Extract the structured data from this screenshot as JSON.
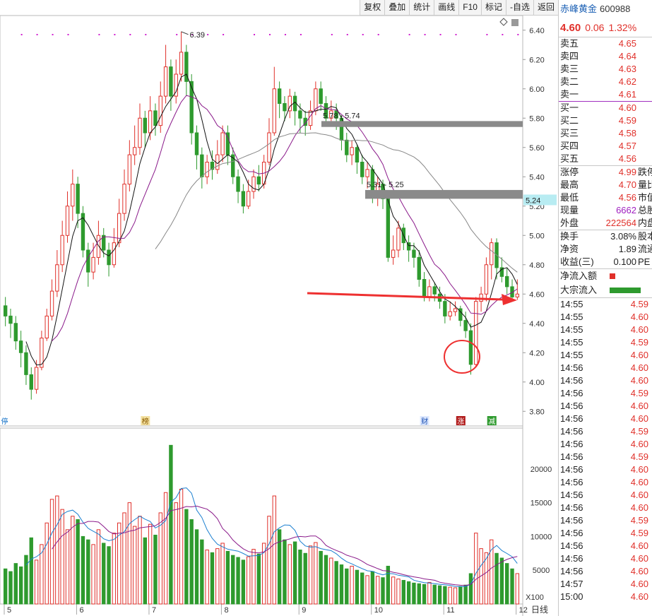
{
  "toolbar": {
    "buttons": [
      "复权",
      "叠加",
      "统计",
      "画线",
      "F10",
      "标记",
      "-自选",
      "返回"
    ]
  },
  "stock": {
    "name": "赤峰黄金",
    "code": "600988",
    "price": "4.60",
    "change": "0.06",
    "pct": "1.32%"
  },
  "order_book": {
    "sells": [
      {
        "label": "卖五",
        "price": "4.65"
      },
      {
        "label": "卖四",
        "price": "4.64"
      },
      {
        "label": "卖三",
        "price": "4.63"
      },
      {
        "label": "卖二",
        "price": "4.62"
      },
      {
        "label": "卖一",
        "price": "4.61"
      }
    ],
    "buys": [
      {
        "label": "买一",
        "price": "4.60"
      },
      {
        "label": "买二",
        "price": "4.59"
      },
      {
        "label": "买三",
        "price": "4.58"
      },
      {
        "label": "买四",
        "price": "4.57"
      },
      {
        "label": "买五",
        "price": "4.56"
      }
    ]
  },
  "stats": [
    {
      "label": "涨停",
      "value": "4.99",
      "extra": "跌停",
      "color": "#e0302a"
    },
    {
      "label": "最高",
      "value": "4.70",
      "extra": "量比",
      "color": "#e0302a"
    },
    {
      "label": "最低",
      "value": "4.56",
      "extra": "市值",
      "color": "#e0302a"
    },
    {
      "label": "现量",
      "value": "6662",
      "extra": "总股",
      "color": "#a020c0"
    },
    {
      "label": "外盘",
      "value": "222564",
      "extra": "内盘",
      "color": "#e0302a"
    }
  ],
  "stats2": [
    {
      "label": "换手",
      "value": "3.08%",
      "extra": "股本",
      "color": "#222"
    },
    {
      "label": "净资",
      "value": "1.89",
      "extra": "流通",
      "color": "#222"
    },
    {
      "label": "收益(三)",
      "value": "0.100",
      "extra": "PE",
      "color": "#222"
    }
  ],
  "flows": [
    {
      "label": "净流入额",
      "color": "#e0302a"
    },
    {
      "label": "大宗流入",
      "color": "#2e9a2e"
    }
  ],
  "ticks": [
    {
      "t": "14:55",
      "p": "4.59"
    },
    {
      "t": "14:55",
      "p": "4.60"
    },
    {
      "t": "14:55",
      "p": "4.60"
    },
    {
      "t": "14:55",
      "p": "4.59"
    },
    {
      "t": "14:55",
      "p": "4.60"
    },
    {
      "t": "14:56",
      "p": "4.60"
    },
    {
      "t": "14:56",
      "p": "4.60"
    },
    {
      "t": "14:56",
      "p": "4.59"
    },
    {
      "t": "14:56",
      "p": "4.60"
    },
    {
      "t": "14:56",
      "p": "4.60"
    },
    {
      "t": "14:56",
      "p": "4.59"
    },
    {
      "t": "14:56",
      "p": "4.60"
    },
    {
      "t": "14:56",
      "p": "4.59"
    },
    {
      "t": "14:56",
      "p": "4.60"
    },
    {
      "t": "14:56",
      "p": "4.60"
    },
    {
      "t": "14:56",
      "p": "4.60"
    },
    {
      "t": "14:56",
      "p": "4.60"
    },
    {
      "t": "14:56",
      "p": "4.59"
    },
    {
      "t": "14:56",
      "p": "4.59"
    },
    {
      "t": "14:56",
      "p": "4.60"
    },
    {
      "t": "14:56",
      "p": "4.60"
    },
    {
      "t": "14:56",
      "p": "4.60"
    },
    {
      "t": "14:57",
      "p": "4.60"
    },
    {
      "t": "15:00",
      "p": "4.60"
    }
  ],
  "chart_data": {
    "type": "candlestick",
    "price_axis_ticks": [
      "6.40",
      "6.20",
      "6.00",
      "5.80",
      "5.60",
      "5.40",
      "5.20",
      "5.00",
      "4.80",
      "4.60",
      "4.40",
      "4.20",
      "4.00",
      "3.80"
    ],
    "price_range": [
      3.7,
      6.5
    ],
    "volume_axis_ticks": [
      "20000",
      "15000",
      "10000",
      "5000"
    ],
    "volume_range": [
      0,
      25000
    ],
    "volume_unit": "X100",
    "period_label": "日线",
    "month_labels": [
      "5",
      "6",
      "7",
      "8",
      "9",
      "10",
      "11",
      "12"
    ],
    "annotations": {
      "high": "6.39",
      "zone1": "5.78 - 5.74",
      "zone2": "5.31 - 5.25",
      "zone2_tag": "5.24"
    },
    "event_markers": [
      "停",
      "榜",
      "财",
      "涨",
      "减"
    ],
    "candles": [
      [
        4.52,
        4.45,
        4.58,
        4.38
      ],
      [
        4.45,
        4.4,
        4.5,
        4.3
      ],
      [
        4.4,
        4.28,
        4.45,
        4.22
      ],
      [
        4.28,
        4.2,
        4.35,
        4.1
      ],
      [
        4.2,
        4.05,
        4.25,
        3.98
      ],
      [
        4.05,
        3.95,
        4.1,
        3.88
      ],
      [
        3.95,
        4.1,
        4.15,
        3.92
      ],
      [
        4.1,
        4.3,
        4.35,
        4.08
      ],
      [
        4.3,
        4.45,
        4.5,
        4.28
      ],
      [
        4.45,
        4.62,
        4.7,
        4.42
      ],
      [
        4.62,
        4.8,
        4.9,
        4.58
      ],
      [
        4.8,
        5.0,
        5.1,
        4.75
      ],
      [
        5.0,
        5.2,
        5.3,
        4.95
      ],
      [
        5.2,
        5.35,
        5.45,
        5.1
      ],
      [
        5.35,
        5.15,
        5.4,
        5.05
      ],
      [
        5.15,
        4.9,
        5.2,
        4.85
      ],
      [
        4.9,
        4.75,
        4.95,
        4.65
      ],
      [
        4.75,
        4.85,
        4.95,
        4.7
      ],
      [
        4.85,
        5.0,
        5.1,
        4.8
      ],
      [
        5.0,
        4.9,
        5.05,
        4.85
      ],
      [
        4.9,
        4.8,
        4.95,
        4.72
      ],
      [
        4.8,
        4.95,
        5.05,
        4.78
      ],
      [
        4.95,
        5.15,
        5.25,
        4.92
      ],
      [
        5.15,
        5.35,
        5.45,
        5.1
      ],
      [
        5.35,
        5.55,
        5.65,
        5.3
      ],
      [
        5.55,
        5.6,
        5.75,
        5.48
      ],
      [
        5.6,
        5.8,
        5.9,
        5.55
      ],
      [
        5.8,
        5.7,
        5.85,
        5.6
      ],
      [
        5.7,
        5.85,
        5.95,
        5.65
      ],
      [
        5.85,
        5.75,
        5.9,
        5.68
      ],
      [
        5.75,
        5.95,
        6.05,
        5.7
      ],
      [
        5.95,
        6.15,
        6.3,
        5.9
      ],
      [
        6.15,
        5.95,
        6.2,
        5.85
      ],
      [
        5.95,
        6.1,
        6.2,
        5.9
      ],
      [
        6.1,
        6.25,
        6.39,
        6.05
      ],
      [
        6.25,
        6.05,
        6.3,
        5.95
      ],
      [
        6.05,
        5.7,
        6.1,
        5.62
      ],
      [
        5.7,
        5.55,
        5.75,
        5.45
      ],
      [
        5.55,
        5.4,
        5.6,
        5.32
      ],
      [
        5.4,
        5.5,
        5.55,
        5.35
      ],
      [
        5.5,
        5.45,
        5.58,
        5.38
      ],
      [
        5.45,
        5.55,
        5.65,
        5.42
      ],
      [
        5.55,
        5.7,
        5.75,
        5.5
      ],
      [
        5.7,
        5.55,
        5.75,
        5.48
      ],
      [
        5.55,
        5.4,
        5.6,
        5.35
      ],
      [
        5.4,
        5.3,
        5.45,
        5.22
      ],
      [
        5.3,
        5.2,
        5.35,
        5.15
      ],
      [
        5.2,
        5.3,
        5.38,
        5.18
      ],
      [
        5.3,
        5.4,
        5.45,
        5.25
      ],
      [
        5.4,
        5.35,
        5.48,
        5.3
      ],
      [
        5.35,
        5.5,
        5.55,
        5.32
      ],
      [
        5.5,
        5.7,
        5.8,
        5.48
      ],
      [
        5.7,
        6.0,
        6.15,
        5.68
      ],
      [
        6.0,
        5.9,
        6.05,
        5.8
      ],
      [
        5.9,
        5.85,
        5.95,
        5.78
      ],
      [
        5.85,
        5.95,
        6.0,
        5.8
      ],
      [
        5.95,
        5.85,
        5.98,
        5.75
      ],
      [
        5.85,
        5.8,
        5.9,
        5.7
      ],
      [
        5.8,
        5.75,
        5.85,
        5.68
      ],
      [
        5.75,
        5.85,
        5.92,
        5.72
      ],
      [
        5.85,
        6.0,
        6.05,
        5.82
      ],
      [
        6.0,
        5.9,
        6.05,
        5.85
      ],
      [
        5.9,
        5.8,
        5.95,
        5.75
      ],
      [
        5.8,
        5.85,
        5.92,
        5.78
      ],
      [
        5.85,
        5.8,
        5.9,
        5.72
      ],
      [
        5.8,
        5.65,
        5.82,
        5.58
      ],
      [
        5.65,
        5.55,
        5.7,
        5.5
      ],
      [
        5.55,
        5.6,
        5.65,
        5.48
      ],
      [
        5.6,
        5.5,
        5.62,
        5.42
      ],
      [
        5.5,
        5.4,
        5.55,
        5.35
      ],
      [
        5.4,
        5.45,
        5.5,
        5.32
      ],
      [
        5.45,
        5.3,
        5.48,
        5.22
      ],
      [
        5.3,
        5.35,
        5.4,
        5.2
      ],
      [
        5.35,
        5.25,
        5.38,
        5.18
      ],
      [
        5.25,
        4.85,
        5.28,
        4.82
      ],
      [
        4.85,
        4.9,
        5.0,
        4.8
      ],
      [
        4.9,
        5.05,
        5.1,
        4.85
      ],
      [
        5.05,
        4.95,
        5.08,
        4.9
      ],
      [
        4.95,
        4.9,
        5.0,
        4.82
      ],
      [
        4.9,
        4.85,
        4.95,
        4.78
      ],
      [
        4.85,
        4.7,
        4.9,
        4.65
      ],
      [
        4.7,
        4.58,
        4.75,
        4.55
      ],
      [
        4.58,
        4.65,
        4.7,
        4.55
      ],
      [
        4.65,
        4.6,
        4.68,
        4.55
      ],
      [
        4.6,
        4.55,
        4.65,
        4.5
      ],
      [
        4.55,
        4.45,
        4.6,
        4.4
      ],
      [
        4.45,
        4.48,
        4.55,
        4.42
      ],
      [
        4.48,
        4.5,
        4.55,
        4.45
      ],
      [
        4.5,
        4.42,
        4.52,
        4.38
      ],
      [
        4.42,
        4.35,
        4.48,
        4.3
      ],
      [
        4.35,
        4.12,
        4.4,
        4.05
      ],
      [
        4.12,
        4.55,
        4.58,
        4.1
      ],
      [
        4.55,
        4.6,
        4.65,
        4.48
      ],
      [
        4.6,
        4.8,
        4.85,
        4.55
      ],
      [
        4.8,
        4.95,
        4.98,
        4.7
      ],
      [
        4.95,
        4.78,
        4.98,
        4.7
      ],
      [
        4.78,
        4.72,
        4.85,
        4.68
      ],
      [
        4.72,
        4.65,
        4.78,
        4.6
      ],
      [
        4.65,
        4.58,
        4.7,
        4.56
      ],
      [
        4.58,
        4.6,
        4.7,
        4.56
      ]
    ],
    "ma_series": [
      {
        "color": "#111111",
        "period": 5
      },
      {
        "color": "#8a1a8a",
        "period": 10
      },
      {
        "color": "#888888",
        "period": 30
      }
    ],
    "volume": [
      5200,
      4800,
      6000,
      5500,
      7200,
      9800,
      6500,
      8800,
      12000,
      15500,
      16000,
      14000,
      11000,
      13000,
      12500,
      10000,
      9500,
      8800,
      11000,
      9000,
      8500,
      10500,
      12000,
      13500,
      15000,
      11500,
      13000,
      9800,
      11800,
      10200,
      13500,
      16500,
      23500,
      15000,
      17000,
      14000,
      12500,
      11000,
      9500,
      8000,
      7600,
      8200,
      9000,
      7800,
      7200,
      6900,
      6500,
      7000,
      8100,
      7400,
      9000,
      13000,
      16000,
      11000,
      9500,
      8800,
      9200,
      8000,
      7500,
      8600,
      9100,
      7800,
      7200,
      6800,
      6300,
      5800,
      5200,
      5600,
      5000,
      4600,
      4200,
      4800,
      4100,
      3900,
      5600,
      4000,
      3700,
      3500,
      3300,
      3100,
      3000,
      2900,
      3200,
      2800,
      2700,
      2600,
      2500,
      2400,
      2600,
      2800,
      4500,
      10500,
      8200,
      7600,
      9500,
      7500,
      6800,
      6000,
      5200,
      4500
    ]
  }
}
